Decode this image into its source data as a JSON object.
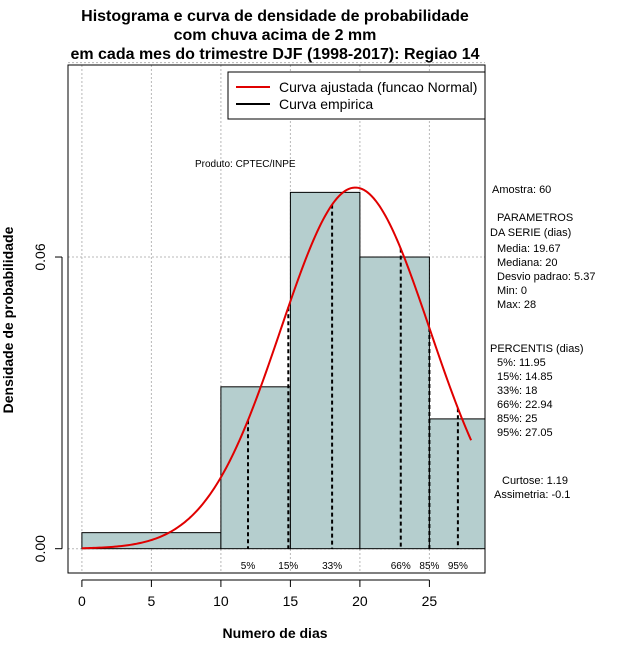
{
  "chart_data": {
    "type": "bar",
    "title_lines": [
      "Histograma e curva de densidade de probabilidade",
      "com chuva acima de 2 mm",
      "em cada mes do trimestre DJF (1998-2017): Regiao 14"
    ],
    "xlabel": "Numero de dias",
    "ylabel": "Densidade de probabilidade",
    "xlim": [
      -1,
      29
    ],
    "ylim": [
      -0.005,
      0.0995
    ],
    "x_ticks": [
      0,
      5,
      10,
      15,
      20,
      25
    ],
    "x_tick_labels": [
      "0",
      "5",
      "10",
      "15",
      "20",
      "25"
    ],
    "y_ticks": [
      0,
      0.06
    ],
    "y_tick_labels": [
      "0.00",
      "0.06"
    ],
    "grid": true,
    "grid_x": [
      0,
      5,
      10,
      15,
      20,
      25
    ],
    "grid_y": [
      0,
      0.06,
      0.1
    ],
    "histogram": {
      "name": "Curva empirica",
      "color": "#b5cece",
      "edges": [
        0,
        10,
        15,
        20,
        25,
        29
      ],
      "values": [
        0.0033,
        0.0333,
        0.0733,
        0.06,
        0.0267
      ]
    },
    "normal_curve": {
      "name": "Curva ajustada (funcao Normal)",
      "color": "#e00000",
      "mean": 19.67,
      "sd": 5.37,
      "x_range": [
        0,
        28
      ]
    },
    "legend": {
      "position": "top-right",
      "entries": [
        {
          "label": "Curva ajustada (funcao Normal)",
          "color": "#e00000"
        },
        {
          "label": "Curva empirica",
          "color": "#000000"
        }
      ]
    },
    "percentile_lines": [
      {
        "label": "5%",
        "x": 11.95
      },
      {
        "label": "15%",
        "x": 14.85
      },
      {
        "label": "33%",
        "x": 18
      },
      {
        "label": "66%",
        "x": 22.94
      },
      {
        "label": "85%",
        "x": 25
      },
      {
        "label": "95%",
        "x": 27.05
      }
    ],
    "credit": "Produto: CPTEC/INPE",
    "stats": {
      "sample": "Amostra: 60",
      "params_header_1": "PARAMETROS",
      "params_header_2": "DA SERIE (dias)",
      "params": [
        "Media: 19.67",
        "Mediana: 20",
        "Desvio padrao: 5.37",
        "Min: 0",
        "Max: 28"
      ],
      "percentis_header": "PERCENTIS (dias)",
      "percentis": [
        "5%: 11.95",
        "15%: 14.85",
        "33%: 18",
        "66%: 22.94",
        "85%: 25",
        "95%: 27.05"
      ],
      "curtose": "Curtose: 1.19",
      "assimetria": "Assimetria: -0.1"
    }
  }
}
